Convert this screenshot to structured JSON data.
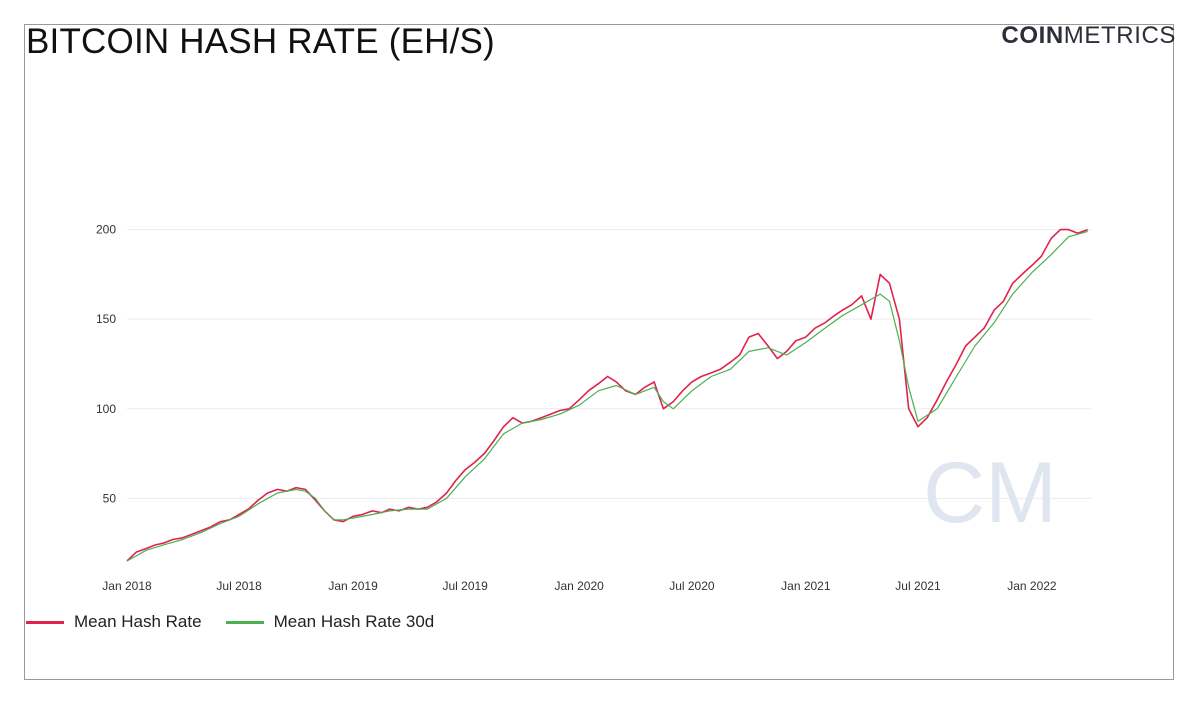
{
  "header": {
    "title": "BITCOIN HASH RATE (EH/S)",
    "logo_bold": "COIN",
    "logo_light": "METRICS"
  },
  "watermark": "CM",
  "chart_data": {
    "type": "line",
    "title": "BITCOIN HASH RATE (EH/S)",
    "xlabel": "",
    "ylabel": "",
    "x_range": [
      "2018-01-01",
      "2022-04-08"
    ],
    "ylim": [
      10,
      250
    ],
    "y_ticks": [
      50,
      100,
      150,
      200
    ],
    "x_ticks": [
      {
        "date": "2018-01-01",
        "label": "Jan 2018"
      },
      {
        "date": "2018-07-01",
        "label": "Jul 2018"
      },
      {
        "date": "2019-01-01",
        "label": "Jan 2019"
      },
      {
        "date": "2019-07-01",
        "label": "Jul 2019"
      },
      {
        "date": "2020-01-01",
        "label": "Jan 2020"
      },
      {
        "date": "2020-07-01",
        "label": "Jul 2020"
      },
      {
        "date": "2021-01-01",
        "label": "Jan 2021"
      },
      {
        "date": "2021-07-01",
        "label": "Jul 2021"
      },
      {
        "date": "2022-01-01",
        "label": "Jan 2022"
      }
    ],
    "grid": true,
    "legend_position": "bottom-left",
    "series": [
      {
        "name": "Mean Hash Rate",
        "color": "#e0234e",
        "points": [
          [
            "2018-01-01",
            15
          ],
          [
            "2018-01-16",
            20
          ],
          [
            "2018-02-01",
            22
          ],
          [
            "2018-02-16",
            24
          ],
          [
            "2018-03-01",
            25
          ],
          [
            "2018-03-16",
            27
          ],
          [
            "2018-04-01",
            28
          ],
          [
            "2018-04-16",
            30
          ],
          [
            "2018-05-01",
            32
          ],
          [
            "2018-05-16",
            34
          ],
          [
            "2018-06-01",
            37
          ],
          [
            "2018-06-16",
            38
          ],
          [
            "2018-07-01",
            41
          ],
          [
            "2018-07-16",
            44
          ],
          [
            "2018-08-01",
            49
          ],
          [
            "2018-08-16",
            53
          ],
          [
            "2018-09-01",
            55
          ],
          [
            "2018-09-16",
            54
          ],
          [
            "2018-10-01",
            56
          ],
          [
            "2018-10-16",
            55
          ],
          [
            "2018-11-01",
            49
          ],
          [
            "2018-11-16",
            43
          ],
          [
            "2018-12-01",
            38
          ],
          [
            "2018-12-16",
            37
          ],
          [
            "2019-01-01",
            40
          ],
          [
            "2019-01-16",
            41
          ],
          [
            "2019-02-01",
            43
          ],
          [
            "2019-02-16",
            42
          ],
          [
            "2019-03-01",
            44
          ],
          [
            "2019-03-16",
            43
          ],
          [
            "2019-04-01",
            45
          ],
          [
            "2019-04-16",
            44
          ],
          [
            "2019-05-01",
            45
          ],
          [
            "2019-05-16",
            48
          ],
          [
            "2019-06-01",
            53
          ],
          [
            "2019-06-16",
            60
          ],
          [
            "2019-07-01",
            66
          ],
          [
            "2019-07-16",
            70
          ],
          [
            "2019-08-01",
            75
          ],
          [
            "2019-08-16",
            82
          ],
          [
            "2019-09-01",
            90
          ],
          [
            "2019-09-16",
            95
          ],
          [
            "2019-10-01",
            92
          ],
          [
            "2019-10-16",
            93
          ],
          [
            "2019-11-01",
            95
          ],
          [
            "2019-11-16",
            97
          ],
          [
            "2019-12-01",
            99
          ],
          [
            "2019-12-16",
            100
          ],
          [
            "2020-01-01",
            105
          ],
          [
            "2020-01-16",
            110
          ],
          [
            "2020-02-01",
            114
          ],
          [
            "2020-02-16",
            118
          ],
          [
            "2020-03-01",
            115
          ],
          [
            "2020-03-16",
            110
          ],
          [
            "2020-04-01",
            108
          ],
          [
            "2020-04-16",
            112
          ],
          [
            "2020-05-01",
            115
          ],
          [
            "2020-05-16",
            100
          ],
          [
            "2020-06-01",
            104
          ],
          [
            "2020-06-16",
            110
          ],
          [
            "2020-07-01",
            115
          ],
          [
            "2020-07-16",
            118
          ],
          [
            "2020-08-01",
            120
          ],
          [
            "2020-08-16",
            122
          ],
          [
            "2020-09-01",
            126
          ],
          [
            "2020-09-16",
            130
          ],
          [
            "2020-10-01",
            140
          ],
          [
            "2020-10-16",
            142
          ],
          [
            "2020-11-01",
            135
          ],
          [
            "2020-11-16",
            128
          ],
          [
            "2020-12-01",
            132
          ],
          [
            "2020-12-16",
            138
          ],
          [
            "2021-01-01",
            140
          ],
          [
            "2021-01-16",
            145
          ],
          [
            "2021-02-01",
            148
          ],
          [
            "2021-02-16",
            152
          ],
          [
            "2021-03-01",
            155
          ],
          [
            "2021-03-16",
            158
          ],
          [
            "2021-04-01",
            163
          ],
          [
            "2021-04-16",
            150
          ],
          [
            "2021-05-01",
            175
          ],
          [
            "2021-05-16",
            170
          ],
          [
            "2021-06-01",
            150
          ],
          [
            "2021-06-16",
            100
          ],
          [
            "2021-07-01",
            90
          ],
          [
            "2021-07-16",
            95
          ],
          [
            "2021-08-01",
            105
          ],
          [
            "2021-08-16",
            115
          ],
          [
            "2021-09-01",
            125
          ],
          [
            "2021-09-16",
            135
          ],
          [
            "2021-10-01",
            140
          ],
          [
            "2021-10-16",
            145
          ],
          [
            "2021-11-01",
            155
          ],
          [
            "2021-11-16",
            160
          ],
          [
            "2021-12-01",
            170
          ],
          [
            "2021-12-16",
            175
          ],
          [
            "2022-01-01",
            180
          ],
          [
            "2022-01-16",
            185
          ],
          [
            "2022-02-01",
            195
          ],
          [
            "2022-02-16",
            200
          ],
          [
            "2022-03-01",
            200
          ],
          [
            "2022-03-16",
            198
          ],
          [
            "2022-04-01",
            200
          ]
        ]
      },
      {
        "name": "Mean Hash Rate 30d",
        "color": "#4caf50",
        "points": [
          [
            "2018-01-01",
            15
          ],
          [
            "2018-02-01",
            21
          ],
          [
            "2018-03-01",
            24
          ],
          [
            "2018-04-01",
            27
          ],
          [
            "2018-05-01",
            31
          ],
          [
            "2018-06-01",
            36
          ],
          [
            "2018-07-01",
            40
          ],
          [
            "2018-08-01",
            47
          ],
          [
            "2018-09-01",
            53
          ],
          [
            "2018-10-01",
            55
          ],
          [
            "2018-10-16",
            54
          ],
          [
            "2018-11-01",
            50
          ],
          [
            "2018-11-16",
            43
          ],
          [
            "2018-12-01",
            38
          ],
          [
            "2018-12-16",
            38
          ],
          [
            "2019-01-01",
            39
          ],
          [
            "2019-02-01",
            41
          ],
          [
            "2019-03-01",
            43
          ],
          [
            "2019-04-01",
            44
          ],
          [
            "2019-05-01",
            44
          ],
          [
            "2019-06-01",
            50
          ],
          [
            "2019-07-01",
            62
          ],
          [
            "2019-08-01",
            72
          ],
          [
            "2019-09-01",
            86
          ],
          [
            "2019-10-01",
            92
          ],
          [
            "2019-11-01",
            94
          ],
          [
            "2019-12-01",
            97
          ],
          [
            "2020-01-01",
            102
          ],
          [
            "2020-02-01",
            110
          ],
          [
            "2020-03-01",
            113
          ],
          [
            "2020-04-01",
            108
          ],
          [
            "2020-05-01",
            112
          ],
          [
            "2020-05-16",
            104
          ],
          [
            "2020-06-01",
            100
          ],
          [
            "2020-07-01",
            110
          ],
          [
            "2020-08-01",
            118
          ],
          [
            "2020-09-01",
            122
          ],
          [
            "2020-10-01",
            132
          ],
          [
            "2020-11-01",
            134
          ],
          [
            "2020-12-01",
            130
          ],
          [
            "2021-01-01",
            137
          ],
          [
            "2021-02-01",
            145
          ],
          [
            "2021-03-01",
            152
          ],
          [
            "2021-04-01",
            158
          ],
          [
            "2021-05-01",
            164
          ],
          [
            "2021-05-16",
            160
          ],
          [
            "2021-06-01",
            138
          ],
          [
            "2021-06-16",
            112
          ],
          [
            "2021-07-01",
            93
          ],
          [
            "2021-08-01",
            100
          ],
          [
            "2021-09-01",
            118
          ],
          [
            "2021-10-01",
            135
          ],
          [
            "2021-11-01",
            148
          ],
          [
            "2021-12-01",
            164
          ],
          [
            "2022-01-01",
            176
          ],
          [
            "2022-02-01",
            186
          ],
          [
            "2022-03-01",
            196
          ],
          [
            "2022-04-01",
            199
          ]
        ]
      }
    ]
  }
}
